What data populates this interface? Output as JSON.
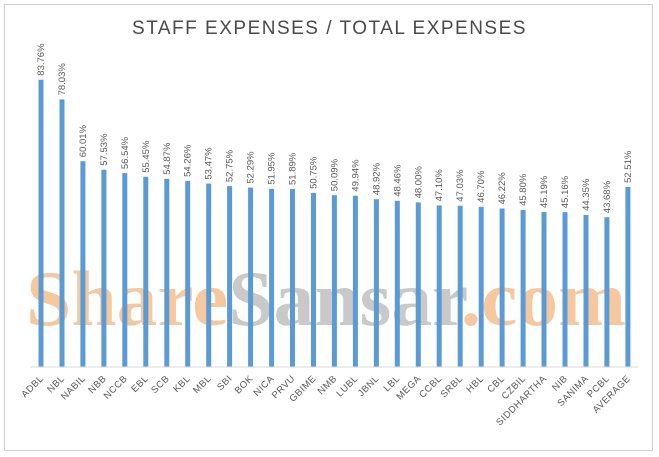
{
  "chart_data": {
    "type": "bar",
    "title": "STAFF EXPENSES / TOTAL EXPENSES",
    "xlabel": "",
    "ylabel": "",
    "ylim": [
      0,
      90
    ],
    "grid": false,
    "categories": [
      "ADBL",
      "NBL",
      "NABIL",
      "NBB",
      "NCCB",
      "EBL",
      "SCB",
      "KBL",
      "MBL",
      "SBI",
      "BOK",
      "NICA",
      "PRVU",
      "GBIME",
      "NMB",
      "LUBL",
      "JBNL",
      "LBL",
      "MEGA",
      "CCBL",
      "SRBL",
      "HBL",
      "CBL",
      "CZBIL",
      "SIDDHARTHA",
      "NIB",
      "SANIMA",
      "PCBL",
      "AVERAGE"
    ],
    "values": [
      83.76,
      78.03,
      60.01,
      57.53,
      56.54,
      55.45,
      54.87,
      54.26,
      53.47,
      52.75,
      52.29,
      51.95,
      51.89,
      50.75,
      50.09,
      49.94,
      48.92,
      48.46,
      48.0,
      47.1,
      47.03,
      46.7,
      46.22,
      45.8,
      45.19,
      45.16,
      44.35,
      43.68,
      52.51
    ],
    "labels": [
      "83.76%",
      "78.03%",
      "60.01%",
      "57.53%",
      "56.54%",
      "55.45%",
      "54.87%",
      "54.26%",
      "53.47%",
      "52.75%",
      "52.29%",
      "51.95%",
      "51.89%",
      "50.75%",
      "50.09%",
      "49.94%",
      "48.92%",
      "48.46%",
      "48.00%",
      "47.10%",
      "47.03%",
      "46.70%",
      "46.22%",
      "45.80%",
      "45.19%",
      "45.16%",
      "44.35%",
      "43.68%",
      "52.51%"
    ],
    "bar_color": "#5b9bd5"
  },
  "watermark": {
    "part1": "Share",
    "part2": "Sansar",
    "part3": ".com",
    "color1": "#f6c8a0",
    "color2": "#c9c9c9",
    "color3": "#f6c8a0"
  }
}
